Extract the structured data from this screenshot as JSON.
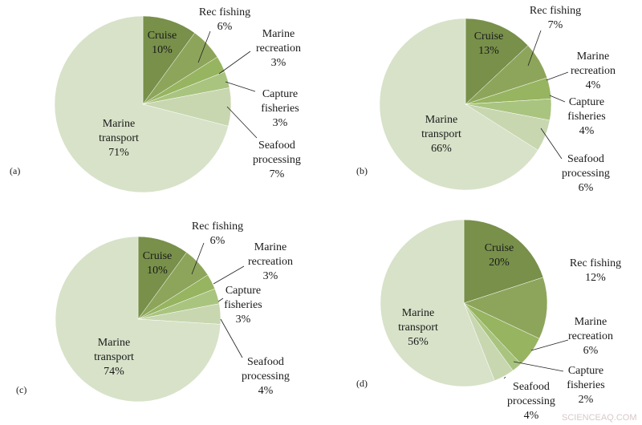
{
  "watermark": "SCIENCEAQ.COM",
  "colors": {
    "cruise": "#78904a",
    "rec_fishing": "#8da55b",
    "marine_recreation": "#97b460",
    "capture_fisheries": "#a9c47f",
    "seafood_processing": "#c8d7b0",
    "marine_transport": "#d7e2c8"
  },
  "chart_data": [
    {
      "type": "pie",
      "panel_label": "(a)",
      "slices": [
        {
          "key": "cruise",
          "label": "Cruise",
          "value_label": "10%",
          "value": 10
        },
        {
          "key": "rec_fishing",
          "label": "Rec fishing",
          "value_label": "6%",
          "value": 6
        },
        {
          "key": "marine_recreation",
          "label": "Marine recreation",
          "value_label": "3%",
          "value": 3
        },
        {
          "key": "capture_fisheries",
          "label": "Capture fisheries",
          "value_label": "3%",
          "value": 3
        },
        {
          "key": "seafood_processing",
          "label": "Seafood processing",
          "value_label": "7%",
          "value": 7
        },
        {
          "key": "marine_transport",
          "label": "Marine transport",
          "value_label": "71%",
          "value": 71
        }
      ]
    },
    {
      "type": "pie",
      "panel_label": "(b)",
      "slices": [
        {
          "key": "cruise",
          "label": "Cruise",
          "value_label": "13%",
          "value": 13
        },
        {
          "key": "rec_fishing",
          "label": "Rec fishing",
          "value_label": "7%",
          "value": 7
        },
        {
          "key": "marine_recreation",
          "label": "Marine recreation",
          "value_label": "4%",
          "value": 4
        },
        {
          "key": "capture_fisheries",
          "label": "Capture fisheries",
          "value_label": "4%",
          "value": 4
        },
        {
          "key": "seafood_processing",
          "label": "Seafood processing",
          "value_label": "6%",
          "value": 6
        },
        {
          "key": "marine_transport",
          "label": "Marine transport",
          "value_label": "66%",
          "value": 66
        }
      ]
    },
    {
      "type": "pie",
      "panel_label": "(c)",
      "slices": [
        {
          "key": "cruise",
          "label": "Cruise",
          "value_label": "10%",
          "value": 10
        },
        {
          "key": "rec_fishing",
          "label": "Rec fishing",
          "value_label": "6%",
          "value": 6
        },
        {
          "key": "marine_recreation",
          "label": "Marine recreation",
          "value_label": "3%",
          "value": 3
        },
        {
          "key": "capture_fisheries",
          "label": "Capture fisheries",
          "value_label": "3%",
          "value": 3
        },
        {
          "key": "seafood_processing",
          "label": "Seafood processing",
          "value_label": "4%",
          "value": 4
        },
        {
          "key": "marine_transport",
          "label": "Marine transport",
          "value_label": "74%",
          "value": 74
        }
      ]
    },
    {
      "type": "pie",
      "panel_label": "(d)",
      "slices": [
        {
          "key": "cruise",
          "label": "Cruise",
          "value_label": "20%",
          "value": 20
        },
        {
          "key": "rec_fishing",
          "label": "Rec fishing",
          "value_label": "12%",
          "value": 12
        },
        {
          "key": "marine_recreation",
          "label": "Marine recreation",
          "value_label": "6%",
          "value": 6
        },
        {
          "key": "capture_fisheries",
          "label": "Capture fisheries",
          "value_label": "2%",
          "value": 2
        },
        {
          "key": "seafood_processing",
          "label": "Seafood processing",
          "value_label": "4%",
          "value": 4
        },
        {
          "key": "marine_transport",
          "label": "Marine transport",
          "value_label": "56%",
          "value": 56
        }
      ]
    }
  ]
}
